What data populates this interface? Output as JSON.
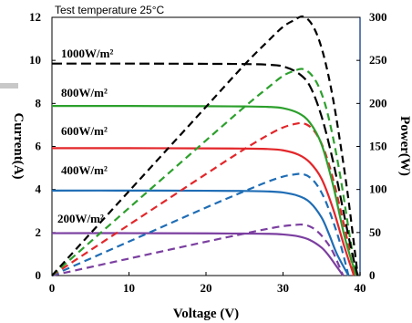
{
  "chart_data": {
    "type": "line",
    "annotation": "Test  temperature 25°C",
    "xlabel": "Voltage (V)",
    "ylabel_left": "Current(A)",
    "ylabel_right": "Power(W)",
    "xlim": [
      0,
      40
    ],
    "ylim_left": [
      0,
      12
    ],
    "ylim_right": [
      0,
      300
    ],
    "x_ticks": [
      0,
      10,
      20,
      30,
      40
    ],
    "y_left_ticks": [
      0,
      2,
      4,
      6,
      8,
      10,
      12
    ],
    "y_right_ticks": [
      0,
      50,
      100,
      150,
      200,
      250,
      300
    ],
    "grid": false,
    "series": [
      {
        "name": "1000W/m²",
        "color": "#000000",
        "iv": {
          "x": [
            0,
            10,
            20,
            25,
            28,
            30,
            32,
            33.5,
            35,
            36.5,
            38,
            39,
            39.7
          ],
          "y": [
            9.85,
            9.85,
            9.84,
            9.83,
            9.8,
            9.72,
            9.4,
            8.8,
            7.4,
            5.3,
            2.7,
            1.0,
            0
          ]
        },
        "pv": {
          "x": [
            0,
            10,
            20,
            25,
            28,
            30,
            31.5,
            32.5,
            33.5,
            34.5,
            35.5,
            36.5,
            37.5,
            38.5,
            39.7
          ],
          "y": [
            0,
            98,
            196,
            245,
            272,
            289,
            297,
            301,
            295,
            278,
            248,
            205,
            150,
            88,
            0
          ]
        }
      },
      {
        "name": "800W/m²",
        "color": "#2ca02c",
        "iv": {
          "x": [
            0,
            10,
            20,
            25,
            28,
            30,
            32,
            33.5,
            35,
            36.5,
            38,
            39.5
          ],
          "y": [
            7.88,
            7.88,
            7.87,
            7.86,
            7.84,
            7.78,
            7.55,
            7.1,
            6.1,
            4.2,
            1.8,
            0
          ]
        },
        "pv": {
          "x": [
            0,
            10,
            20,
            25,
            28,
            30,
            31.5,
            32.5,
            33.5,
            34.5,
            35.5,
            36.5,
            37.5,
            38.5,
            39.5
          ],
          "y": [
            0,
            78.5,
            157,
            196,
            218,
            232,
            238,
            240,
            235,
            222,
            198,
            160,
            112,
            55,
            0
          ]
        }
      },
      {
        "name": "600W/m²",
        "color": "#e3262a",
        "iv": {
          "x": [
            0,
            10,
            20,
            25,
            28,
            30,
            32,
            33.5,
            35,
            36.5,
            38,
            39.2
          ],
          "y": [
            5.92,
            5.92,
            5.91,
            5.9,
            5.88,
            5.82,
            5.62,
            5.25,
            4.5,
            3.1,
            1.3,
            0
          ]
        },
        "pv": {
          "x": [
            0,
            10,
            20,
            25,
            28,
            30,
            31.5,
            32.5,
            33.5,
            34.5,
            35.5,
            36.5,
            37.5,
            38.5,
            39.2
          ],
          "y": [
            0,
            59,
            118,
            147,
            163,
            172,
            176,
            177,
            173,
            162,
            142,
            112,
            75,
            35,
            0
          ]
        }
      },
      {
        "name": "400W/m²",
        "color": "#1f6db5",
        "iv": {
          "x": [
            0,
            10,
            20,
            25,
            28,
            30,
            32,
            33.5,
            35,
            36,
            37,
            38.5
          ],
          "y": [
            3.95,
            3.95,
            3.94,
            3.93,
            3.91,
            3.86,
            3.7,
            3.4,
            2.7,
            1.9,
            1.0,
            0
          ]
        },
        "pv": {
          "x": [
            0,
            10,
            20,
            25,
            28,
            30,
            31.5,
            32.5,
            33.5,
            34.5,
            35.5,
            36.5,
            37.5,
            38.5
          ],
          "y": [
            0,
            39.5,
            79,
            98,
            109,
            115,
            117.5,
            118,
            114,
            104,
            87,
            63,
            35,
            0
          ]
        }
      },
      {
        "name": "200W/m²",
        "color": "#7b3fa0",
        "iv": {
          "x": [
            0,
            10,
            20,
            25,
            28,
            30,
            32,
            33.5,
            35,
            36,
            37,
            37.8
          ],
          "y": [
            1.97,
            1.97,
            1.96,
            1.95,
            1.94,
            1.91,
            1.82,
            1.65,
            1.3,
            0.9,
            0.4,
            0
          ]
        },
        "pv": {
          "x": [
            0,
            10,
            20,
            25,
            28,
            30,
            31.5,
            32.5,
            33.5,
            34.5,
            35.5,
            36.5,
            37.8
          ],
          "y": [
            0,
            19.7,
            39.3,
            48.8,
            54.3,
            57.4,
            58.8,
            59.2,
            57,
            51,
            41,
            27,
            0
          ]
        }
      }
    ]
  }
}
